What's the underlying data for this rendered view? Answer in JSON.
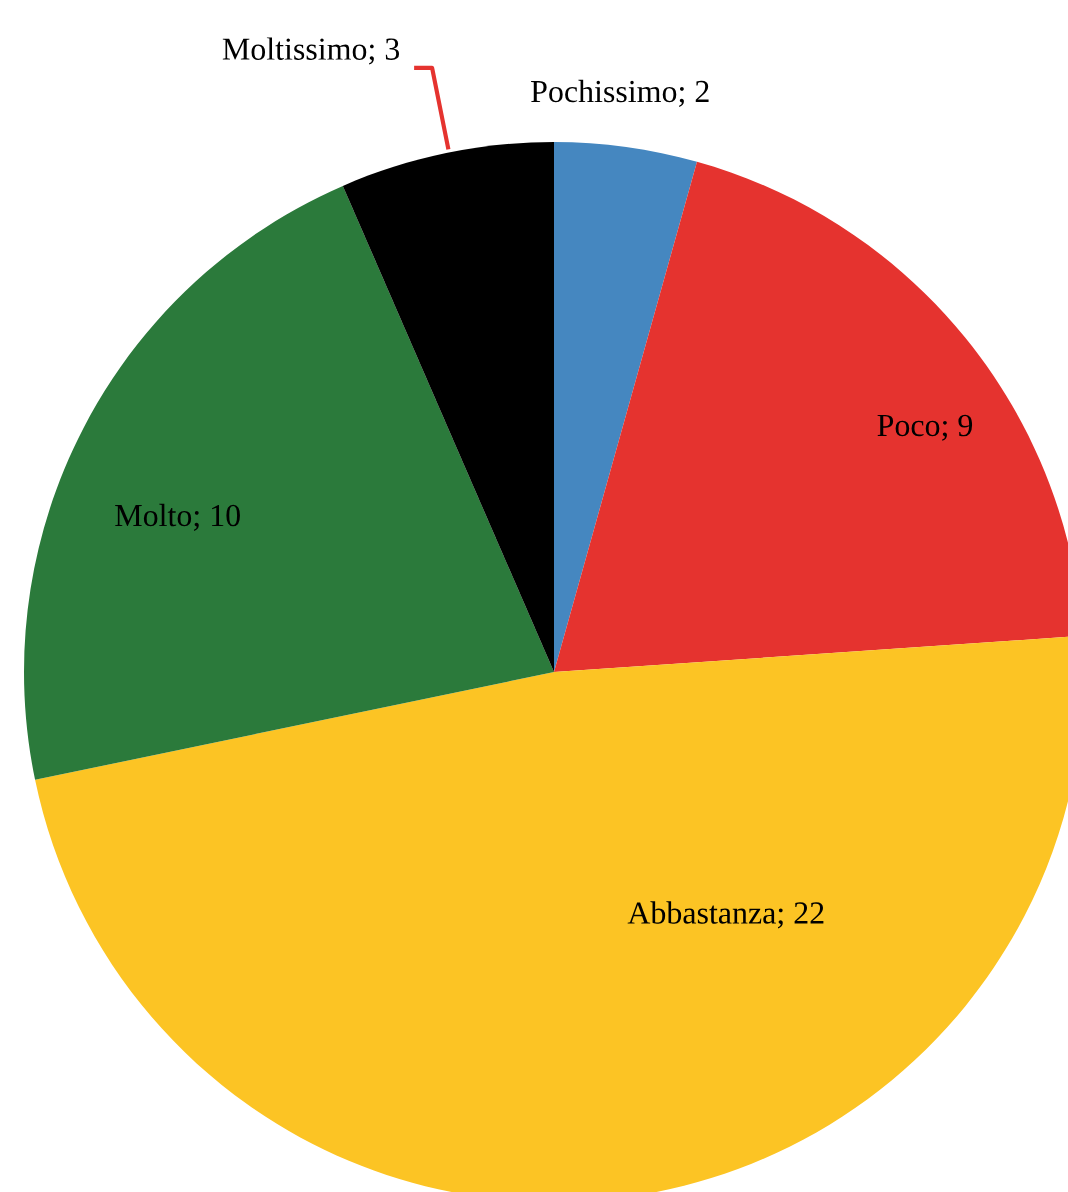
{
  "chart_data": {
    "type": "pie",
    "categories": [
      "Pochissimo; 2",
      "Poco; 9",
      "Abbastanza; 22",
      "Molto; 10",
      "Moltissimo; 3"
    ],
    "values": [
      2,
      9,
      22,
      10,
      3
    ],
    "colors": [
      "#4587c0",
      "#e5332f",
      "#fcc424",
      "#2b7a3b",
      "#000000"
    ]
  }
}
